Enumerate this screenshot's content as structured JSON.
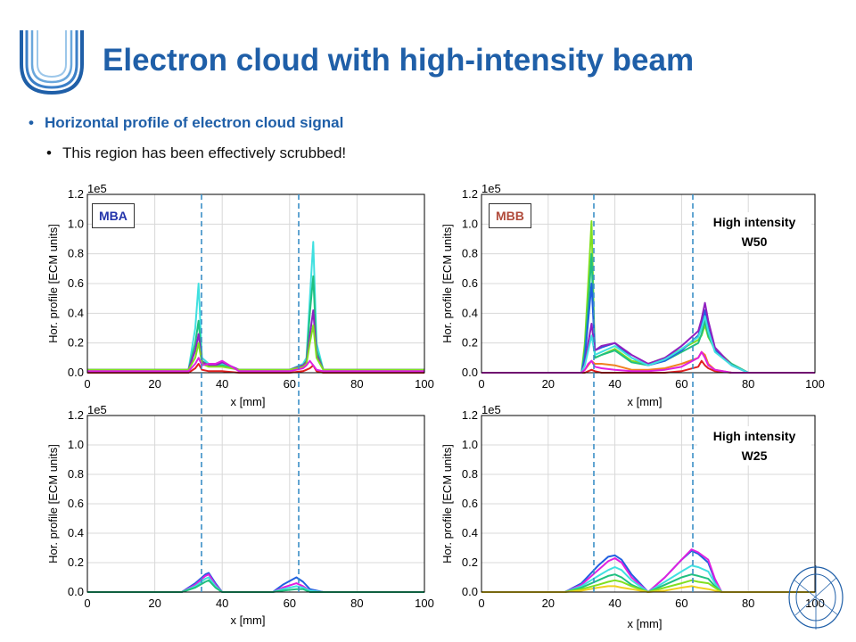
{
  "slide": {
    "title": "Electron cloud with high-intensity beam",
    "bullet_main": "Horizontal profile of electron cloud signal",
    "bullet_sub": "This region has been effectively scrubbed!",
    "bullet_symbol": "•"
  },
  "labels": {
    "mba": "MBA",
    "mbb": "MBB",
    "w50_line1": "High intensity",
    "w50_line2": "W50",
    "w25_line1": "High intensity",
    "w25_line2": "W25"
  },
  "colors": {
    "title": "#1f5fa8",
    "mba_label": "#2233aa",
    "mbb_label": "#b04a3a",
    "dashed_line": "#3b8fc7"
  },
  "chart_data": [
    {
      "id": "mba_w50",
      "type": "line",
      "xlabel": "x [mm]",
      "ylabel": "Hor. profile [ECM units]",
      "exponent_label": "1e5",
      "xlim": [
        0,
        100
      ],
      "ylim": [
        0,
        1.2
      ],
      "xticks": [
        "0",
        "20",
        "40",
        "60",
        "80",
        "100"
      ],
      "yticks": [
        "0.0",
        "0.2",
        "0.4",
        "0.6",
        "0.8",
        "1.0",
        "1.2"
      ],
      "grid": true,
      "show_xlabel": true,
      "series": [
        {
          "color": "#40e0e0",
          "x": [
            0,
            30,
            32,
            33,
            34,
            36,
            38,
            40,
            45,
            60,
            64,
            65,
            66,
            67,
            68,
            70,
            100
          ],
          "y": [
            0.02,
            0.02,
            0.3,
            0.6,
            0.1,
            0.06,
            0.06,
            0.06,
            0.02,
            0.02,
            0.06,
            0.1,
            0.5,
            0.88,
            0.2,
            0.02,
            0.02
          ]
        },
        {
          "color": "#20c080",
          "x": [
            0,
            30,
            32,
            33,
            34,
            36,
            38,
            40,
            45,
            60,
            64,
            65,
            66,
            67,
            68,
            70,
            100
          ],
          "y": [
            0.02,
            0.02,
            0.2,
            0.35,
            0.08,
            0.05,
            0.05,
            0.05,
            0.02,
            0.02,
            0.05,
            0.08,
            0.4,
            0.65,
            0.15,
            0.02,
            0.02
          ]
        },
        {
          "color": "#9020c0",
          "x": [
            0,
            30,
            32,
            33,
            34,
            36,
            38,
            40,
            45,
            60,
            64,
            65,
            66,
            67,
            68,
            70,
            100
          ],
          "y": [
            0.02,
            0.02,
            0.15,
            0.26,
            0.07,
            0.05,
            0.05,
            0.07,
            0.02,
            0.02,
            0.05,
            0.07,
            0.25,
            0.42,
            0.12,
            0.02,
            0.02
          ]
        },
        {
          "color": "#80e020",
          "x": [
            0,
            30,
            32,
            33,
            34,
            36,
            38,
            40,
            45,
            60,
            64,
            65,
            66,
            67,
            68,
            70,
            100
          ],
          "y": [
            0.02,
            0.02,
            0.1,
            0.2,
            0.06,
            0.04,
            0.04,
            0.04,
            0.02,
            0.02,
            0.04,
            0.06,
            0.2,
            0.32,
            0.1,
            0.02,
            0.02
          ]
        },
        {
          "color": "#e02020",
          "x": [
            0,
            30,
            32,
            33,
            34,
            36,
            38,
            40,
            45,
            60,
            64,
            65,
            66,
            67,
            68,
            70,
            100
          ],
          "y": [
            0.0,
            0.0,
            0.03,
            0.06,
            0.02,
            0.01,
            0.01,
            0.01,
            0.0,
            0.0,
            0.01,
            0.02,
            0.03,
            0.05,
            0.01,
            0.0,
            0.0
          ]
        },
        {
          "color": "#e020e0",
          "x": [
            0,
            30,
            32,
            33,
            34,
            36,
            38,
            40,
            45,
            60,
            64,
            65,
            66,
            67,
            68,
            70,
            100
          ],
          "y": [
            0.01,
            0.01,
            0.06,
            0.1,
            0.05,
            0.06,
            0.06,
            0.08,
            0.01,
            0.01,
            0.03,
            0.05,
            0.08,
            0.05,
            0.02,
            0.01,
            0.01
          ]
        }
      ]
    },
    {
      "id": "mbb_w50",
      "type": "line",
      "xlabel": "x [mm]",
      "ylabel": "Hor. profile [ECM units]",
      "exponent_label": "1e5",
      "xlim": [
        0,
        100
      ],
      "ylim": [
        0,
        1.2
      ],
      "xticks": [
        "0",
        "20",
        "40",
        "60",
        "80",
        "100"
      ],
      "yticks": [
        "0.0",
        "0.2",
        "0.4",
        "0.6",
        "0.8",
        "1.0",
        "1.2"
      ],
      "grid": true,
      "show_xlabel": true,
      "series": [
        {
          "color": "#80e020",
          "x": [
            0,
            30,
            31,
            32,
            33,
            34,
            36,
            40,
            45,
            50,
            55,
            60,
            65,
            66,
            67,
            68,
            70,
            75,
            80,
            100
          ],
          "y": [
            0.0,
            0.0,
            0.2,
            0.6,
            1.02,
            0.1,
            0.12,
            0.16,
            0.08,
            0.06,
            0.1,
            0.16,
            0.22,
            0.25,
            0.32,
            0.24,
            0.16,
            0.06,
            0.0,
            0.0
          ]
        },
        {
          "color": "#20c080",
          "x": [
            0,
            30,
            31,
            32,
            33,
            34,
            36,
            40,
            45,
            50,
            55,
            60,
            65,
            66,
            67,
            68,
            70,
            75,
            80,
            100
          ],
          "y": [
            0.0,
            0.0,
            0.15,
            0.45,
            0.8,
            0.1,
            0.12,
            0.15,
            0.07,
            0.05,
            0.08,
            0.14,
            0.2,
            0.26,
            0.35,
            0.25,
            0.15,
            0.06,
            0.0,
            0.0
          ]
        },
        {
          "color": "#2060e0",
          "x": [
            0,
            30,
            31,
            32,
            33,
            34,
            36,
            40,
            45,
            50,
            55,
            60,
            65,
            66,
            67,
            68,
            70,
            75,
            80,
            100
          ],
          "y": [
            0.0,
            0.0,
            0.1,
            0.35,
            0.6,
            0.15,
            0.17,
            0.2,
            0.1,
            0.05,
            0.08,
            0.15,
            0.25,
            0.32,
            0.42,
            0.3,
            0.15,
            0.05,
            0.0,
            0.0
          ]
        },
        {
          "color": "#9020c0",
          "x": [
            0,
            30,
            31,
            32,
            33,
            34,
            36,
            40,
            45,
            50,
            55,
            60,
            65,
            66,
            67,
            68,
            70,
            75,
            80,
            100
          ],
          "y": [
            0.0,
            0.0,
            0.06,
            0.2,
            0.33,
            0.15,
            0.18,
            0.2,
            0.12,
            0.06,
            0.1,
            0.18,
            0.28,
            0.36,
            0.47,
            0.35,
            0.17,
            0.05,
            0.0,
            0.0
          ]
        },
        {
          "color": "#40e0e0",
          "x": [
            0,
            30,
            31,
            32,
            33,
            34,
            36,
            40,
            45,
            50,
            55,
            60,
            65,
            66,
            67,
            68,
            70,
            75,
            80,
            100
          ],
          "y": [
            0.0,
            0.0,
            0.05,
            0.15,
            0.25,
            0.12,
            0.14,
            0.18,
            0.1,
            0.05,
            0.09,
            0.16,
            0.24,
            0.3,
            0.38,
            0.28,
            0.14,
            0.05,
            0.0,
            0.0
          ]
        },
        {
          "color": "#f08020",
          "x": [
            0,
            30,
            31,
            32,
            33,
            34,
            36,
            40,
            45,
            50,
            55,
            60,
            65,
            66,
            67,
            68,
            70,
            75,
            80,
            100
          ],
          "y": [
            0.0,
            0.0,
            0.02,
            0.05,
            0.08,
            0.06,
            0.06,
            0.05,
            0.02,
            0.02,
            0.03,
            0.06,
            0.1,
            0.14,
            0.12,
            0.06,
            0.02,
            0.0,
            0.0,
            0.0
          ]
        },
        {
          "color": "#e02020",
          "x": [
            0,
            30,
            31,
            32,
            33,
            34,
            36,
            40,
            45,
            50,
            55,
            60,
            65,
            66,
            67,
            68,
            70,
            75,
            80,
            100
          ],
          "y": [
            0.0,
            0.0,
            0.0,
            0.01,
            0.02,
            0.01,
            0.0,
            0.0,
            0.0,
            0.0,
            0.0,
            0.01,
            0.04,
            0.08,
            0.05,
            0.03,
            0.01,
            0.0,
            0.0,
            0.0
          ]
        },
        {
          "color": "#e020e0",
          "x": [
            0,
            30,
            31,
            32,
            33,
            34,
            36,
            40,
            45,
            50,
            55,
            60,
            65,
            66,
            67,
            68,
            70,
            75,
            80,
            100
          ],
          "y": [
            0.0,
            0.0,
            0.02,
            0.06,
            0.08,
            0.04,
            0.03,
            0.02,
            0.01,
            0.01,
            0.02,
            0.04,
            0.1,
            0.14,
            0.1,
            0.05,
            0.02,
            0.0,
            0.0,
            0.0
          ]
        }
      ]
    },
    {
      "id": "mba_w25",
      "type": "line",
      "xlabel": "x [mm]",
      "ylabel": "Hor. profile [ECM units]",
      "exponent_label": "1e5",
      "xlim": [
        0,
        100
      ],
      "ylim": [
        0,
        1.2
      ],
      "xticks": [
        "0",
        "20",
        "40",
        "60",
        "80",
        "100"
      ],
      "yticks": [
        "0.0",
        "0.2",
        "0.4",
        "0.6",
        "0.8",
        "1.0",
        "1.2"
      ],
      "grid": true,
      "show_xlabel": true,
      "series": [
        {
          "color": "#2060e0",
          "x": [
            0,
            28,
            32,
            35,
            36,
            38,
            40,
            55,
            58,
            62,
            64,
            66,
            70,
            100
          ],
          "y": [
            0.0,
            0.0,
            0.06,
            0.12,
            0.13,
            0.06,
            0.0,
            0.0,
            0.05,
            0.1,
            0.07,
            0.02,
            0.0,
            0.0
          ]
        },
        {
          "color": "#e020e0",
          "x": [
            0,
            28,
            32,
            35,
            36,
            38,
            40,
            55,
            58,
            62,
            64,
            66,
            70,
            100
          ],
          "y": [
            0.0,
            0.0,
            0.05,
            0.11,
            0.12,
            0.05,
            0.0,
            0.0,
            0.03,
            0.06,
            0.04,
            0.01,
            0.0,
            0.0
          ]
        },
        {
          "color": "#40e0e0",
          "x": [
            0,
            28,
            32,
            35,
            36,
            38,
            40,
            55,
            58,
            62,
            64,
            66,
            70,
            100
          ],
          "y": [
            0.0,
            0.0,
            0.04,
            0.09,
            0.1,
            0.04,
            0.0,
            0.0,
            0.02,
            0.04,
            0.03,
            0.01,
            0.0,
            0.0
          ]
        },
        {
          "color": "#20c080",
          "x": [
            0,
            28,
            32,
            35,
            36,
            38,
            40,
            55,
            58,
            62,
            64,
            66,
            70,
            100
          ],
          "y": [
            0.0,
            0.0,
            0.03,
            0.07,
            0.08,
            0.03,
            0.0,
            0.0,
            0.01,
            0.02,
            0.02,
            0.0,
            0.0,
            0.0
          ]
        }
      ]
    },
    {
      "id": "mbb_w25",
      "type": "line",
      "xlabel": "x [mm]",
      "ylabel": "Hor. profile [ECM units]",
      "exponent_label": "1e5",
      "xlim": [
        0,
        100
      ],
      "ylim": [
        0,
        1.2
      ],
      "xticks": [
        "0",
        "20",
        "40",
        "60",
        "80",
        "100"
      ],
      "yticks": [
        "0.0",
        "0.2",
        "0.4",
        "0.6",
        "0.8",
        "1.0",
        "1.2"
      ],
      "grid": true,
      "show_xlabel": true,
      "series": [
        {
          "color": "#2060e0",
          "x": [
            0,
            25,
            30,
            35,
            38,
            40,
            42,
            45,
            50,
            55,
            60,
            63,
            65,
            68,
            70,
            72,
            100
          ],
          "y": [
            0.0,
            0.0,
            0.06,
            0.18,
            0.24,
            0.25,
            0.22,
            0.12,
            0.0,
            0.1,
            0.22,
            0.28,
            0.26,
            0.2,
            0.08,
            0.0,
            0.0
          ]
        },
        {
          "color": "#e020e0",
          "x": [
            0,
            25,
            30,
            35,
            38,
            40,
            42,
            45,
            50,
            55,
            60,
            63,
            65,
            68,
            70,
            72,
            100
          ],
          "y": [
            0.0,
            0.0,
            0.05,
            0.15,
            0.21,
            0.23,
            0.2,
            0.1,
            0.0,
            0.1,
            0.22,
            0.29,
            0.27,
            0.22,
            0.09,
            0.0,
            0.0
          ]
        },
        {
          "color": "#40e0e0",
          "x": [
            0,
            25,
            30,
            35,
            38,
            40,
            42,
            45,
            50,
            55,
            60,
            63,
            65,
            68,
            70,
            72,
            100
          ],
          "y": [
            0.0,
            0.0,
            0.04,
            0.11,
            0.15,
            0.17,
            0.15,
            0.08,
            0.0,
            0.07,
            0.14,
            0.18,
            0.17,
            0.14,
            0.06,
            0.0,
            0.0
          ]
        },
        {
          "color": "#20c080",
          "x": [
            0,
            25,
            30,
            35,
            38,
            40,
            42,
            45,
            50,
            55,
            60,
            63,
            65,
            68,
            70,
            72,
            100
          ],
          "y": [
            0.0,
            0.0,
            0.03,
            0.08,
            0.11,
            0.12,
            0.1,
            0.05,
            0.0,
            0.05,
            0.1,
            0.12,
            0.11,
            0.09,
            0.04,
            0.0,
            0.0
          ]
        },
        {
          "color": "#80e020",
          "x": [
            0,
            25,
            30,
            35,
            38,
            40,
            42,
            45,
            50,
            55,
            60,
            63,
            65,
            68,
            70,
            72,
            100
          ],
          "y": [
            0.0,
            0.0,
            0.02,
            0.05,
            0.07,
            0.08,
            0.07,
            0.04,
            0.0,
            0.03,
            0.06,
            0.08,
            0.07,
            0.06,
            0.03,
            0.0,
            0.0
          ]
        },
        {
          "color": "#f0d020",
          "x": [
            0,
            25,
            30,
            35,
            38,
            40,
            42,
            45,
            50,
            55,
            60,
            63,
            65,
            68,
            70,
            72,
            100
          ],
          "y": [
            0.0,
            0.0,
            0.01,
            0.03,
            0.04,
            0.04,
            0.03,
            0.02,
            0.0,
            0.01,
            0.03,
            0.04,
            0.03,
            0.02,
            0.01,
            0.0,
            0.0
          ]
        }
      ]
    }
  ]
}
